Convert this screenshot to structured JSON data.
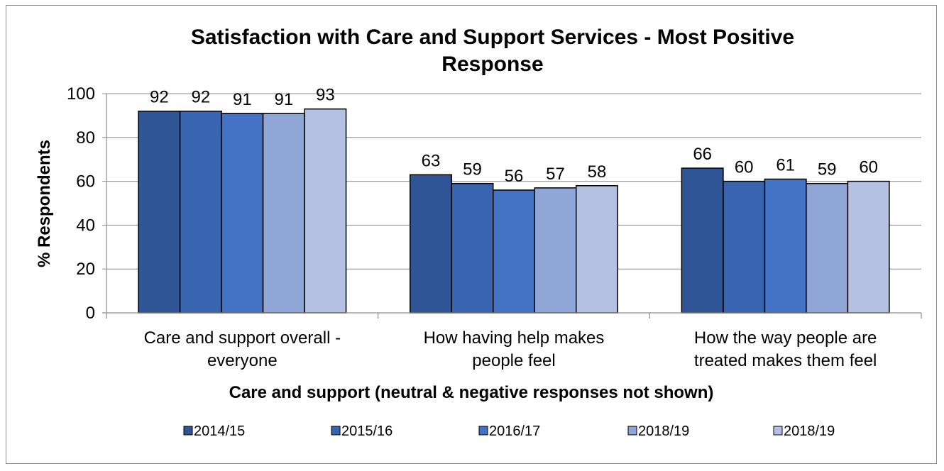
{
  "chart_data": {
    "type": "bar",
    "title_lines": [
      "Satisfaction with Care and Support Services - Most Positive",
      "Response"
    ],
    "ylabel": "% Respondents",
    "xlabel": "Care and support (neutral & negative responses not shown)",
    "ylim": [
      0,
      100
    ],
    "yticks": [
      "0",
      "20",
      "40",
      "60",
      "80",
      "100"
    ],
    "grid": true,
    "legend_position": "bottom",
    "categories": [
      [
        "Care and support overall -",
        "everyone"
      ],
      [
        "How having help makes",
        "people feel"
      ],
      [
        "How the way people are",
        "treated makes them feel"
      ]
    ],
    "series": [
      {
        "name": "2014/15",
        "color": "#2f5597",
        "values": [
          92,
          63,
          66
        ]
      },
      {
        "name": "2015/16",
        "color": "#3864b0",
        "values": [
          92,
          59,
          60
        ]
      },
      {
        "name": "2016/17",
        "color": "#4472c4",
        "values": [
          91,
          56,
          61
        ]
      },
      {
        "name": "2018/19",
        "color": "#8fa6d6",
        "values": [
          91,
          57,
          59
        ]
      },
      {
        "name": "2018/19",
        "color": "#b4c1e3",
        "values": [
          93,
          58,
          60
        ]
      }
    ]
  }
}
